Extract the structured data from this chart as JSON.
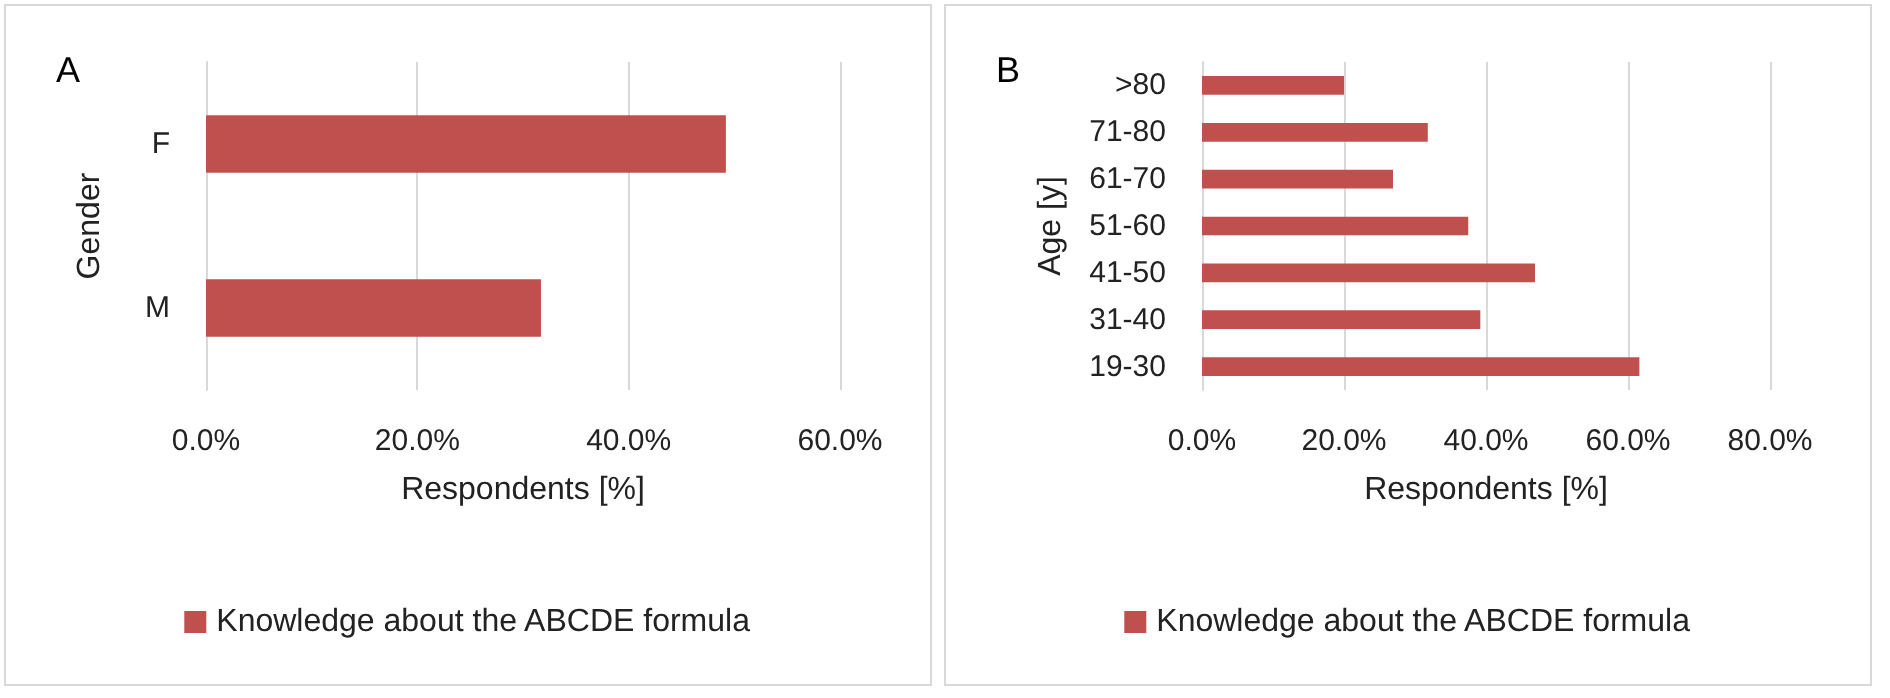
{
  "chart_data": [
    {
      "type": "bar",
      "orientation": "horizontal",
      "title": "A",
      "xlabel": "Respondents [%]",
      "ylabel": "Gender",
      "categories": [
        "F",
        "M"
      ],
      "series": [
        {
          "name": "Knowledge about the ABCDE formula",
          "color": "#c0504d",
          "values": [
            49.2,
            31.7
          ]
        }
      ],
      "xlim": [
        0,
        60
      ],
      "xticks": [
        {
          "value": 0,
          "label": "0.0%"
        },
        {
          "value": 20,
          "label": "20.0%"
        },
        {
          "value": 40,
          "label": "40.0%"
        },
        {
          "value": 60,
          "label": "60.0%"
        }
      ],
      "grid": "x",
      "legend": "bottom"
    },
    {
      "type": "bar",
      "orientation": "horizontal",
      "title": "B",
      "xlabel": "Respondents [%]",
      "ylabel": "Age [y]",
      "categories": [
        ">80",
        "71-80",
        "61-70",
        "51-60",
        "41-50",
        "31-40",
        "19-30"
      ],
      "series": [
        {
          "name": "Knowledge about the ABCDE formula",
          "color": "#c0504d",
          "values": [
            20.0,
            31.8,
            26.9,
            37.5,
            46.9,
            39.2,
            61.6
          ]
        }
      ],
      "xlim": [
        0,
        80
      ],
      "xticks": [
        {
          "value": 0,
          "label": "0.0%"
        },
        {
          "value": 20,
          "label": "20.0%"
        },
        {
          "value": 40,
          "label": "40.0%"
        },
        {
          "value": 60,
          "label": "60.0%"
        },
        {
          "value": 80,
          "label": "80.0%"
        }
      ],
      "grid": "x",
      "legend": "bottom"
    }
  ]
}
